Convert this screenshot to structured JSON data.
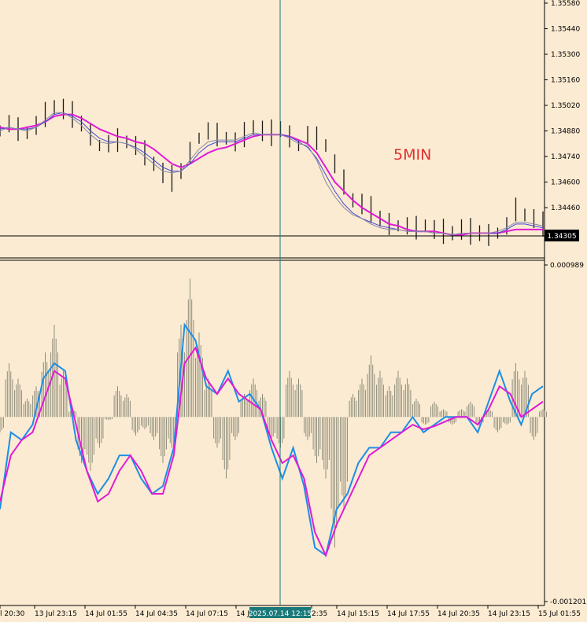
{
  "chart_data": [
    {
      "type": "bar",
      "subtype": "ohlc",
      "timeframe_label": "5MIN",
      "ylim": [
        1.34305,
        1.3558
      ],
      "y_ticks": [
        "1.35580",
        "1.35440",
        "1.35300",
        "1.35160",
        "1.35020",
        "1.34880",
        "1.34740",
        "1.34600",
        "1.34460"
      ],
      "current_price": "1.34305",
      "series": [
        {
          "name": "",
          "kind": "ohlc",
          "color": "#1a1a1a",
          "values": [
            1.3488,
            1.3492,
            1.3489,
            1.3487,
            1.3491,
            1.3497,
            1.3501,
            1.35,
            1.3497,
            1.3492,
            1.3486,
            1.348,
            1.3481,
            1.3483,
            1.3482,
            1.348,
            1.3476,
            1.347,
            1.3465,
            1.3462,
            1.3466,
            1.3476,
            1.3484,
            1.3488,
            1.3486,
            1.3484,
            1.3482,
            1.3486,
            1.349,
            1.3488,
            1.3487,
            1.3489,
            1.3485,
            1.348,
            1.3486,
            1.3484,
            1.348,
            1.347,
            1.346,
            1.345,
            1.3448,
            1.3445,
            1.344,
            1.3437,
            1.3436,
            1.3436,
            1.3435,
            1.3436,
            1.3434,
            1.3433,
            1.3432,
            1.3434,
            1.3433,
            1.3432,
            1.3431,
            1.3432,
            1.3436,
            1.3445,
            1.3442,
            1.344,
            1.3437
          ]
        },
        {
          "name": "",
          "kind": "ma",
          "color": "#e01bd6",
          "values": [
            1.349,
            1.3489,
            1.3489,
            1.349,
            1.3491,
            1.3493,
            1.3496,
            1.3497,
            1.3497,
            1.3495,
            1.3492,
            1.3489,
            1.3487,
            1.3485,
            1.3484,
            1.3482,
            1.3481,
            1.3478,
            1.3474,
            1.347,
            1.3468,
            1.347,
            1.3473,
            1.3476,
            1.3478,
            1.3479,
            1.3481,
            1.3483,
            1.3485,
            1.3486,
            1.3486,
            1.3486,
            1.3485,
            1.3483,
            1.3481,
            1.3476,
            1.3468,
            1.346,
            1.3455,
            1.345,
            1.3446,
            1.3443,
            1.344,
            1.3437,
            1.3436,
            1.3434,
            1.3433,
            1.3433,
            1.3433,
            1.3432,
            1.3431,
            1.3431,
            1.3432,
            1.3432,
            1.3432,
            1.3432,
            1.3433,
            1.3434,
            1.3434,
            1.3434,
            1.3434
          ]
        },
        {
          "name": "",
          "kind": "ma",
          "color": "#4a4ad8",
          "values": [
            1.3489,
            1.349,
            1.3489,
            1.3489,
            1.349,
            1.3493,
            1.3497,
            1.3498,
            1.3496,
            1.3493,
            1.3488,
            1.3484,
            1.3482,
            1.3482,
            1.3481,
            1.3479,
            1.3476,
            1.3472,
            1.3468,
            1.3466,
            1.3466,
            1.347,
            1.3476,
            1.348,
            1.3482,
            1.3482,
            1.3482,
            1.3484,
            1.3486,
            1.3486,
            1.3486,
            1.3486,
            1.3485,
            1.3482,
            1.3479,
            1.3473,
            1.3464,
            1.3455,
            1.3448,
            1.3443,
            1.344,
            1.3438,
            1.3436,
            1.3435,
            1.3434,
            1.3433,
            1.3433,
            1.3433,
            1.3432,
            1.3432,
            1.3431,
            1.3432,
            1.3432,
            1.3432,
            1.3432,
            1.3432,
            1.3434,
            1.3437,
            1.3437,
            1.3436,
            1.3435
          ]
        },
        {
          "name": "",
          "kind": "ma",
          "color": "#8a8aa0",
          "values": [
            1.3488,
            1.349,
            1.3489,
            1.3488,
            1.349,
            1.3494,
            1.3498,
            1.3498,
            1.3495,
            1.3491,
            1.3486,
            1.3482,
            1.3481,
            1.3482,
            1.3481,
            1.3478,
            1.3474,
            1.347,
            1.3466,
            1.3465,
            1.3466,
            1.3472,
            1.3478,
            1.3482,
            1.3483,
            1.3483,
            1.3483,
            1.3485,
            1.3487,
            1.3486,
            1.3486,
            1.3486,
            1.3484,
            1.3481,
            1.348,
            1.3472,
            1.346,
            1.3452,
            1.3446,
            1.3442,
            1.344,
            1.3437,
            1.3435,
            1.3434,
            1.3434,
            1.3433,
            1.3433,
            1.3433,
            1.3432,
            1.3432,
            1.3431,
            1.3432,
            1.3432,
            1.3432,
            1.3432,
            1.3433,
            1.3435,
            1.3438,
            1.3438,
            1.3437,
            1.3436
          ]
        }
      ]
    },
    {
      "type": "bar",
      "subtype": "histogram_with_lines",
      "ylim": [
        -0.001201,
        0.000989
      ],
      "y_ticks": [
        "0.000989",
        "-0.001201"
      ],
      "series": [
        {
          "name": "",
          "kind": "histogram",
          "color": "#8c8c7a",
          "values": [
            -0.0001,
            0.00035,
            0.00025,
            0.00012,
            0.0002,
            0.00042,
            0.0006,
            0.0003,
            5e-05,
            -0.0003,
            -0.00035,
            -0.0002,
            -2e-05,
            0.0002,
            0.00015,
            -0.00012,
            -8e-05,
            -0.00015,
            -0.0003,
            -0.0002,
            0.0006,
            0.0009,
            0.00055,
            0.00025,
            -0.0002,
            -0.0004,
            -0.00015,
            0.00015,
            0.00025,
            0.00015,
            -0.00015,
            -0.0002,
            0.0003,
            0.00025,
            -0.00015,
            -0.0003,
            -0.0004,
            -0.00085,
            -0.0006,
            0.00015,
            0.00025,
            0.0004,
            0.0003,
            0.0002,
            0.0003,
            0.00025,
            0.00012,
            -5e-05,
            0.0001,
            5e-05,
            -5e-05,
            5e-05,
            0.0001,
            -5e-05,
            5e-05,
            -0.0001,
            -5e-05,
            0.00035,
            0.0003,
            -0.00015,
            5e-05
          ]
        },
        {
          "name": "",
          "kind": "line",
          "color": "#1e8ee6",
          "values": [
            -0.0006,
            -0.0001,
            -0.00015,
            -5e-05,
            0.00025,
            0.00035,
            0.0003,
            -0.00015,
            -0.00035,
            -0.0005,
            -0.0004,
            -0.00025,
            -0.00025,
            -0.0004,
            -0.0005,
            -0.00045,
            -0.0002,
            0.0006,
            0.0005,
            0.0002,
            0.00015,
            0.0003,
            0.0001,
            0.00015,
            5e-05,
            -0.0002,
            -0.0004,
            -0.0002,
            -0.00045,
            -0.00085,
            -0.0009,
            -0.0006,
            -0.0005,
            -0.0003,
            -0.0002,
            -0.0002,
            -0.0001,
            -0.0001,
            0.0,
            -0.0001,
            -5e-05,
            0.0,
            0.0,
            0.0,
            -0.0001,
            0.0001,
            0.0003,
            0.0001,
            -5e-05,
            0.00015,
            0.0002
          ]
        },
        {
          "name": "",
          "kind": "line",
          "color": "#e01bd6",
          "values": [
            -0.00055,
            -0.00025,
            -0.00015,
            -0.0001,
            0.0001,
            0.0003,
            0.00025,
            -5e-05,
            -0.00035,
            -0.00055,
            -0.0005,
            -0.00035,
            -0.00025,
            -0.00035,
            -0.0005,
            -0.0005,
            -0.00025,
            0.00035,
            0.00045,
            0.00025,
            0.00015,
            0.00025,
            0.00015,
            0.0001,
            5e-05,
            -0.00015,
            -0.0003,
            -0.00025,
            -0.0004,
            -0.00075,
            -0.0009,
            -0.0007,
            -0.00055,
            -0.0004,
            -0.00025,
            -0.0002,
            -0.00015,
            -0.0001,
            -5e-05,
            -8e-05,
            -6e-05,
            -3e-05,
            0.0,
            0.0,
            -5e-05,
            5e-05,
            0.0002,
            0.00015,
            0.0,
            5e-05,
            0.0001
          ]
        }
      ]
    }
  ],
  "x_axis_labels": [
    "l 20:30",
    "13 Jul 23:15",
    "14 Jul 01:55",
    "14 Jul 04:35",
    "14 Jul 07:15",
    "14 Jul",
    "2:35",
    "14 Jul 15:15",
    "14 Jul 17:55",
    "14 Jul 20:35",
    "14 Jul 23:15",
    "15 Jul 01:55"
  ],
  "crosshair_label": "2025.07.14 12:15",
  "colors": {
    "background": "#fbebd2",
    "crosshair": "#1a7a7a",
    "annotation": "#e03030",
    "ma_fast": "#e01bd6",
    "macd_line": "#1e8ee6"
  }
}
